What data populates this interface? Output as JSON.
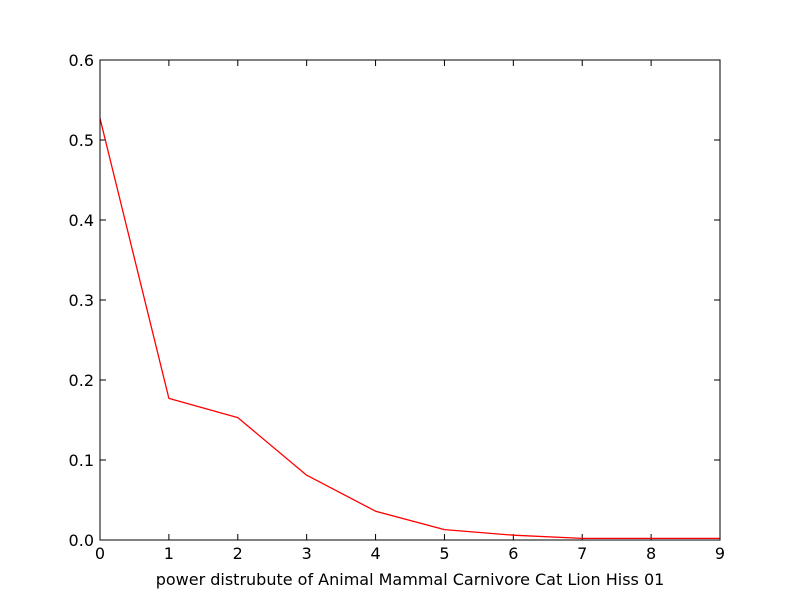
{
  "chart_data": {
    "type": "line",
    "title": "",
    "xlabel": "power distrubute of Animal Mammal Carnivore Cat Lion Hiss 01",
    "ylabel": "",
    "xlim": [
      0,
      9
    ],
    "ylim": [
      0,
      0.6
    ],
    "x_ticks": [
      "0",
      "1",
      "2",
      "3",
      "4",
      "5",
      "6",
      "7",
      "8",
      "9"
    ],
    "y_ticks": [
      "0.0",
      "0.1",
      "0.2",
      "0.3",
      "0.4",
      "0.5",
      "0.6"
    ],
    "grid": false,
    "legend": "none",
    "series": [
      {
        "color": "#ff0000",
        "x": [
          0,
          1,
          2,
          3,
          4,
          5,
          6,
          7,
          8,
          9
        ],
        "y": [
          0.527,
          0.177,
          0.153,
          0.081,
          0.036,
          0.013,
          0.006,
          0.002,
          0.002,
          0.002
        ]
      }
    ]
  }
}
